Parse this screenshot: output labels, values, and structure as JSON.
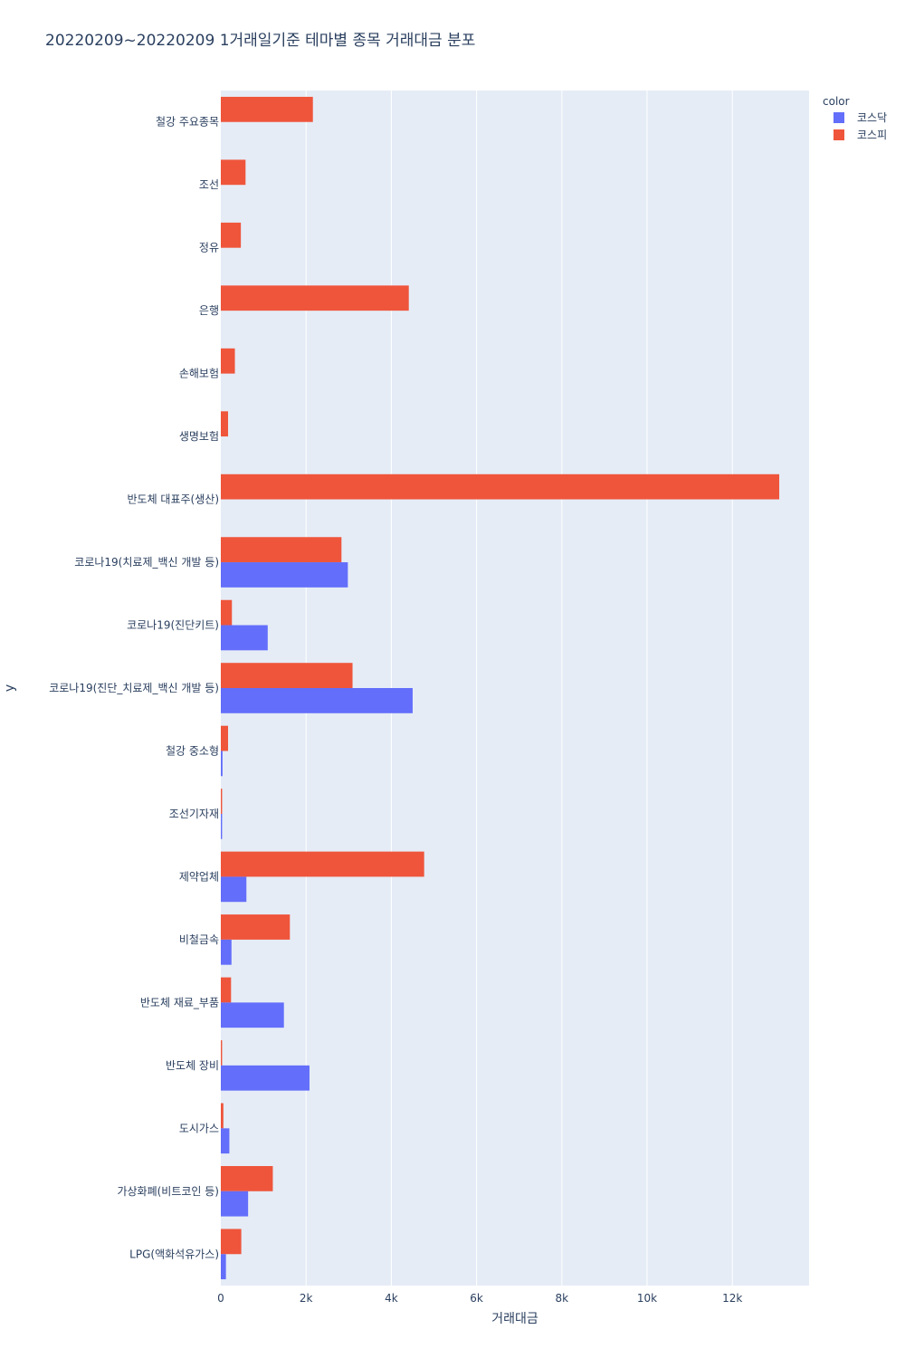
{
  "chart_data": {
    "type": "bar",
    "orientation": "horizontal",
    "title": "20220209~20220209 1거래일기준 테마별 종목 거래대금 분포",
    "xlabel": "거래대금",
    "ylabel": "y",
    "xlim": [
      0,
      13800
    ],
    "x_ticks": [
      0,
      2000,
      4000,
      6000,
      8000,
      10000,
      12000
    ],
    "x_tick_labels": [
      "0",
      "2k",
      "4k",
      "6k",
      "8k",
      "10k",
      "12k"
    ],
    "grid": true,
    "legend": {
      "title": "color",
      "position": "top-right"
    },
    "categories": [
      "철강 주요종목",
      "조선",
      "정유",
      "은행",
      "손해보험",
      "생명보험",
      "반도체 대표주(생산)",
      "코로나19(치료제_백신 개발 등)",
      "코로나19(진단키트)",
      "코로나19(진단_치료제_백신 개발 등)",
      "철강 중소형",
      "조선기자재",
      "제약업체",
      "비철금속",
      "반도체 재료_부품",
      "반도체 장비",
      "도시가스",
      "가상화폐(비트코인 등)",
      "LPG(액화석유가스)"
    ],
    "series": [
      {
        "name": "코스닥",
        "color": "#636efa",
        "values": [
          null,
          null,
          null,
          null,
          null,
          null,
          null,
          2980,
          1100,
          4500,
          40,
          30,
          600,
          250,
          1480,
          2080,
          200,
          640,
          120
        ]
      },
      {
        "name": "코스피",
        "color": "#ef553b",
        "values": [
          2160,
          580,
          470,
          4410,
          330,
          170,
          13100,
          2830,
          260,
          3090,
          170,
          30,
          4770,
          1620,
          240,
          30,
          60,
          1220,
          480
        ]
      }
    ],
    "plot_background": "#e5ecf6",
    "grid_color": "#ffffff"
  }
}
